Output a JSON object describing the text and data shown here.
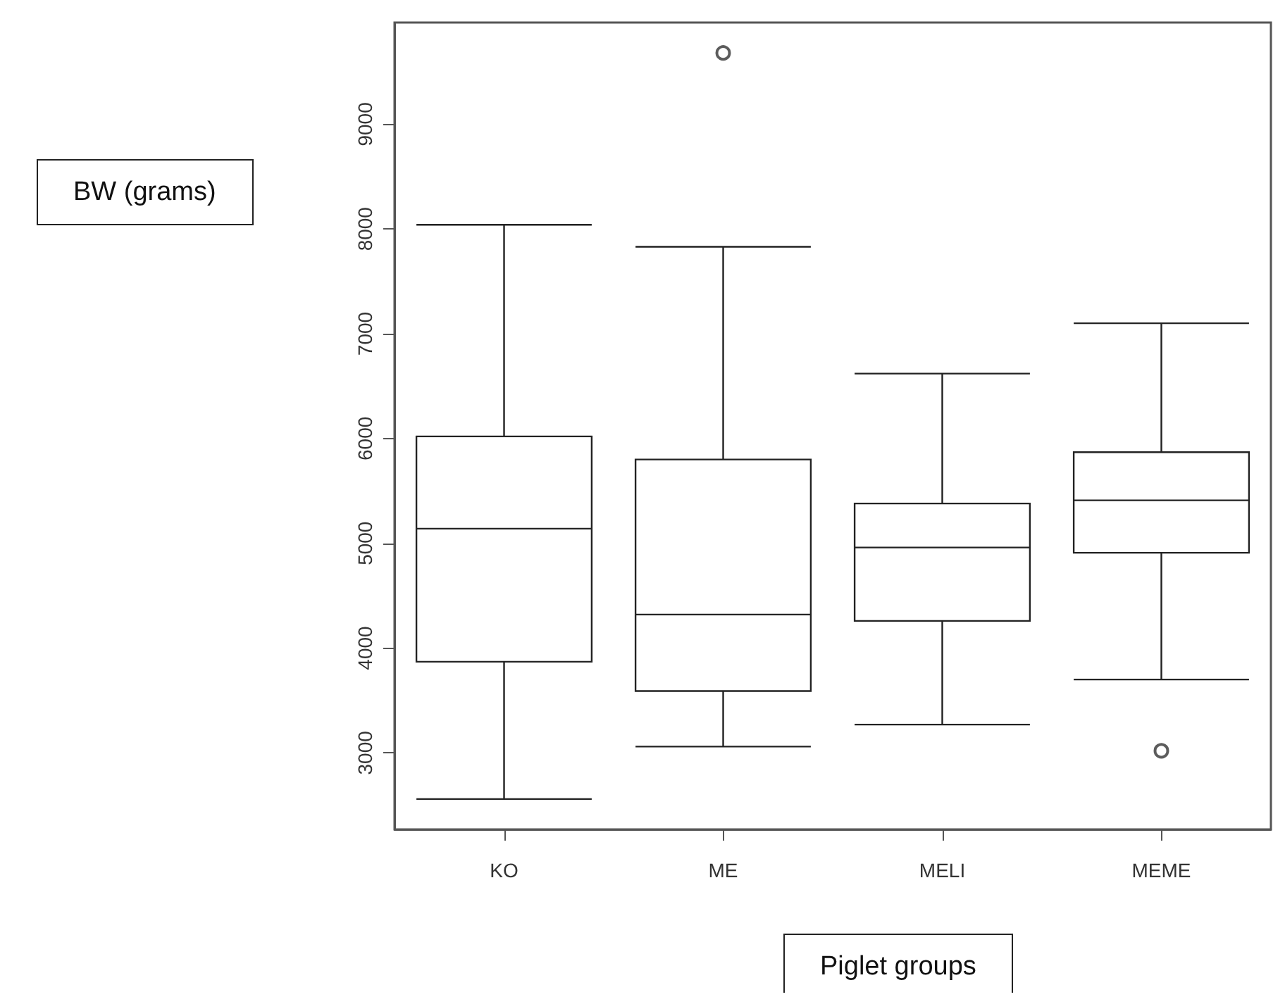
{
  "chart_data": {
    "type": "box",
    "xlabel": "Piglet groups",
    "annotations": [
      "BW (grams)"
    ],
    "categories": [
      "KO",
      "ME",
      "MELI",
      "MEME"
    ],
    "boxes": [
      {
        "low": 2560,
        "q1": 3870,
        "median": 5140,
        "q3": 6020,
        "high": 8040
      },
      {
        "low": 3060,
        "q1": 3590,
        "median": 4320,
        "q3": 5800,
        "high": 7830,
        "outliers": [
          9680
        ]
      },
      {
        "low": 3270,
        "q1": 4260,
        "median": 4960,
        "q3": 5380,
        "high": 6620
      },
      {
        "low": 3700,
        "q1": 4910,
        "median": 5410,
        "q3": 5870,
        "high": 7100,
        "outliers": [
          3020
        ]
      }
    ],
    "ylim": [
      2270,
      9970
    ],
    "yticks": [
      3000,
      4000,
      5000,
      6000,
      7000,
      8000,
      9000
    ],
    "marker": "circle"
  }
}
